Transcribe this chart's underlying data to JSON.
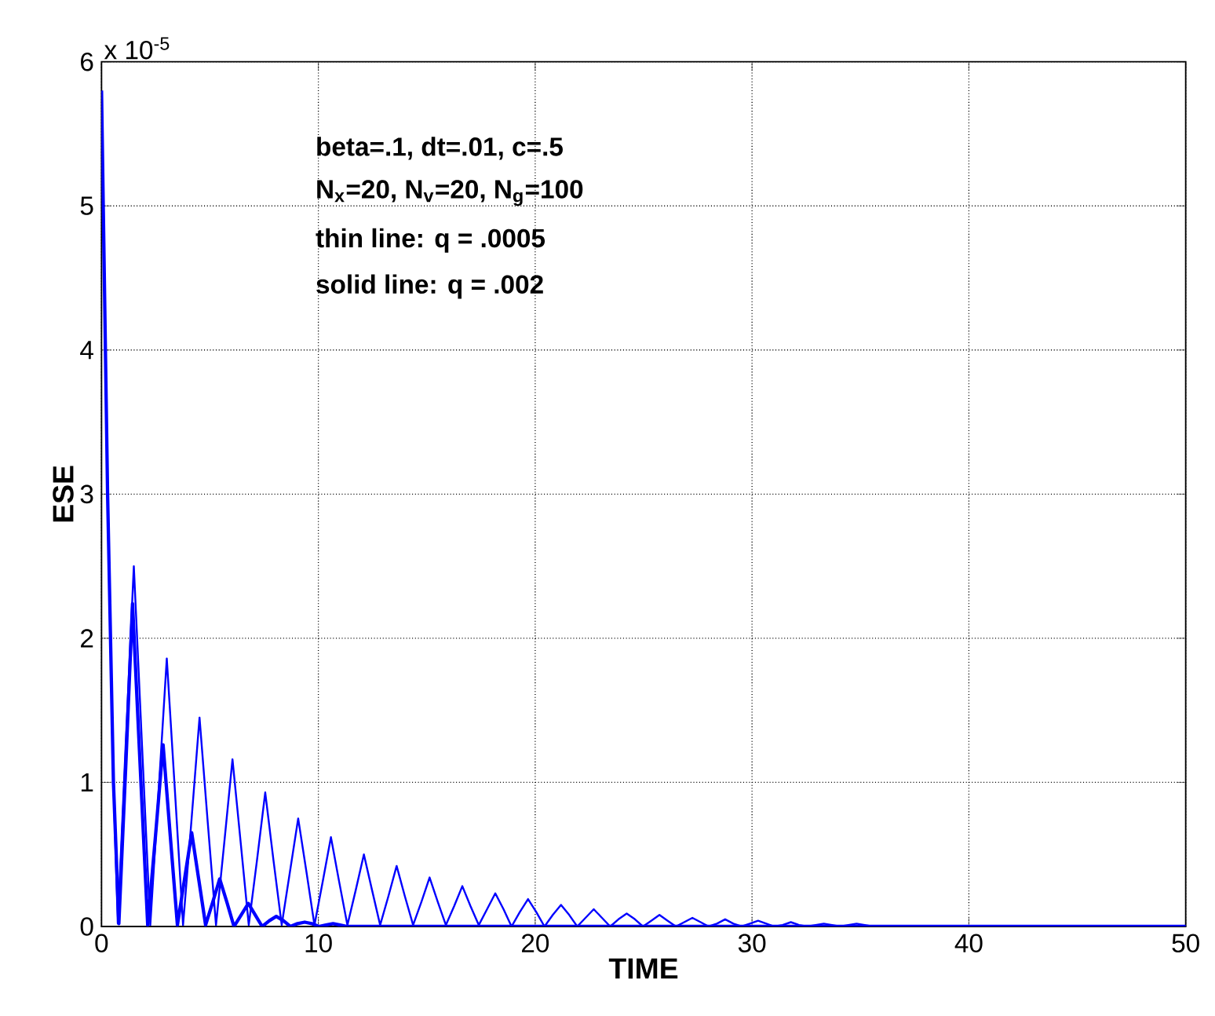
{
  "chart_data": {
    "type": "line",
    "xlabel": "TIME",
    "ylabel": "ESE",
    "annotations": [
      "x 10$^{-5}$",
      "beta=.1, dt=.01, c=.5",
      "N$_{x}$=20, N$_{v}$=20, N$_{g}$=100",
      "thin line: q = .0005",
      "solid line: q = .002"
    ],
    "xlim": [
      0,
      50
    ],
    "ylim": [
      0,
      6
    ],
    "xticks": [
      0,
      10,
      20,
      30,
      40,
      50
    ],
    "yticks": [
      0,
      1,
      2,
      3,
      4,
      5,
      6
    ],
    "grid": true,
    "line_style": "solid",
    "marker": "none",
    "series": [
      {
        "color": "#0000ff",
        "x": [
          0,
          0.28,
          0.55,
          0.75,
          1.11,
          1.49,
          1.87,
          2.25,
          2.63,
          3.01,
          3.39,
          3.76,
          4.14,
          4.52,
          4.9,
          5.28,
          5.66,
          6.04,
          6.42,
          6.79,
          7.17,
          7.55,
          7.93,
          8.31,
          8.69,
          9.07,
          9.45,
          9.82,
          10.2,
          10.58,
          10.96,
          11.34,
          11.72,
          12.1,
          12.48,
          12.85,
          13.23,
          13.61,
          13.99,
          14.37,
          14.75,
          15.13,
          15.51,
          15.88,
          16.26,
          16.64,
          17.02,
          17.4,
          17.78,
          18.16,
          18.54,
          18.91,
          19.29,
          19.67,
          20.05,
          20.43,
          20.81,
          21.19,
          21.57,
          21.94,
          22.32,
          22.7,
          23.08,
          23.46,
          23.84,
          24.22,
          24.6,
          24.97,
          25.35,
          25.73,
          26.11,
          26.49,
          26.87,
          27.25,
          27.63,
          28.0,
          28.38,
          28.76,
          29.14,
          29.52,
          29.9,
          30.28,
          30.66,
          31.03,
          31.41,
          31.79,
          32.17,
          32.55,
          32.93,
          33.31,
          33.69,
          34.06,
          34.44,
          34.82,
          35.2,
          35.58,
          50
        ],
        "values": [
          5.8,
          3.0,
          1.0,
          0.02,
          1.25,
          2.5,
          1.25,
          0.01,
          0.93,
          1.86,
          0.93,
          0.01,
          0.72,
          1.45,
          0.72,
          0.01,
          0.58,
          1.16,
          0.58,
          0.01,
          0.46,
          0.93,
          0.46,
          0.01,
          0.38,
          0.75,
          0.38,
          0.01,
          0.31,
          0.62,
          0.31,
          0.01,
          0.25,
          0.5,
          0.25,
          0.01,
          0.21,
          0.42,
          0.21,
          0.01,
          0.17,
          0.34,
          0.17,
          0.01,
          0.14,
          0.28,
          0.14,
          0.01,
          0.12,
          0.23,
          0.12,
          0,
          0.1,
          0.19,
          0.1,
          0,
          0.08,
          0.15,
          0.08,
          0,
          0.06,
          0.12,
          0.06,
          0,
          0.05,
          0.09,
          0.05,
          0,
          0.04,
          0.08,
          0.04,
          0,
          0.03,
          0.06,
          0.03,
          0,
          0.02,
          0.05,
          0.02,
          0,
          0.02,
          0.04,
          0.02,
          0,
          0.01,
          0.03,
          0.01,
          0,
          0.01,
          0.02,
          0.01,
          0,
          0.01,
          0.02,
          0.01,
          0,
          0
        ]
      },
      {
        "color": "#0000ff",
        "x": [
          0,
          0.28,
          0.55,
          0.8,
          1.12,
          1.43,
          1.78,
          2.13,
          2.49,
          2.84,
          3.17,
          3.5,
          3.83,
          4.16,
          4.48,
          4.8,
          5.13,
          5.45,
          5.78,
          6.11,
          6.44,
          6.77,
          7.09,
          7.41,
          7.74,
          8.06,
          8.39,
          8.71,
          9.04,
          9.37,
          9.7,
          10.02,
          10.35,
          10.68,
          11.0,
          11.33,
          50
        ],
        "values": [
          5.8,
          3.0,
          1.0,
          0.02,
          1.12,
          2.24,
          1.12,
          0.01,
          0.63,
          1.26,
          0.63,
          0.01,
          0.33,
          0.65,
          0.33,
          0.01,
          0.17,
          0.33,
          0.17,
          0,
          0.08,
          0.16,
          0.08,
          0,
          0.04,
          0.07,
          0.04,
          0,
          0.02,
          0.03,
          0.02,
          0,
          0.01,
          0.02,
          0.01,
          0,
          0
        ]
      }
    ]
  }
}
